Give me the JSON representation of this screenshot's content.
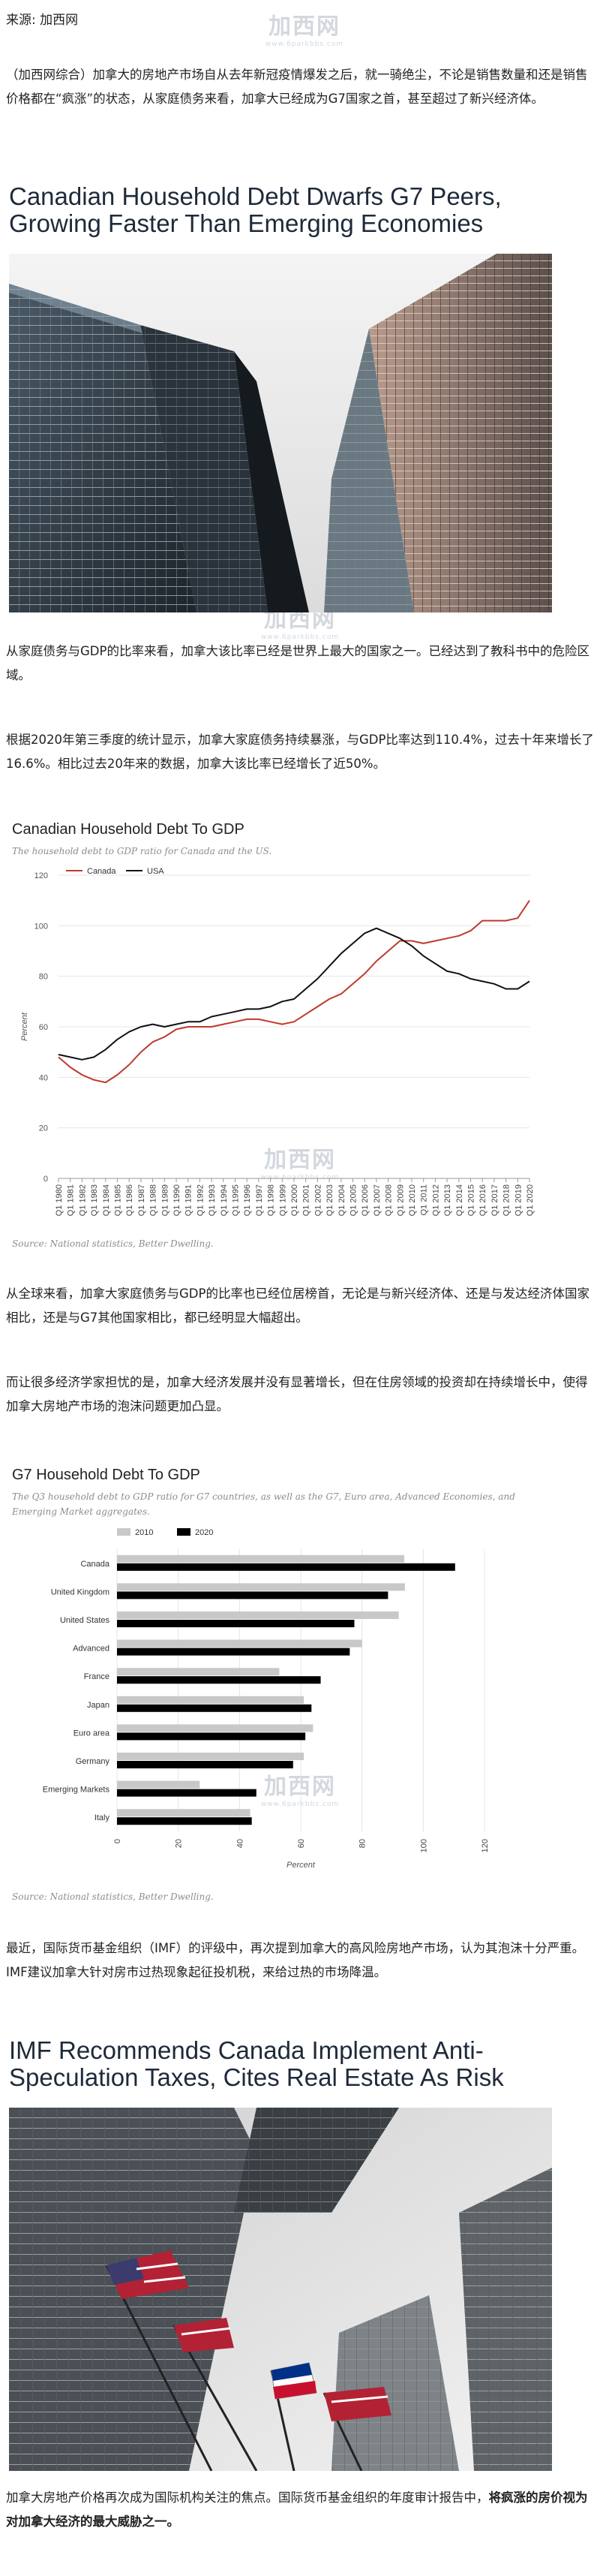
{
  "source": "来源: 加西网",
  "watermark": {
    "main": "加西网",
    "sub": "www.6parkbbs.com"
  },
  "paragraphs": {
    "intro": "（加西网综合）加拿大的房地产市场自从去年新冠疫情爆发之后，就一骑绝尘，不论是销售数量和还是销售价格都在“疯涨”的状态，从家庭债务来看，加拿大已经成为G7国家之首，甚至超过了新兴经济体。",
    "ratio": "从家庭债务与GDP的比率来看，加拿大该比率已经是世界上最大的国家之一。已经达到了教科书中的危险区域。",
    "stats": "根据2020年第三季度的统计显示，加拿大家庭债务持续暴涨，与GDP比率达到110.4%，过去十年来增长了16.6%。相比过去20年来的数据，加拿大该比率已经增长了近50%。",
    "global": "从全球来看，加拿大家庭债务与GDP的比率也已经位居榜首，无论是与新兴经济体、还是与发达经济体国家相比，还是与G7其他国家相比，都已经明显大幅超出。",
    "economists": "而让很多经济学家担忧的是，加拿大经济发展并没有显著增长，但在住房领域的投资却在持续增长中，使得加拿大房地产市场的泡沫问题更加凸显。",
    "imf": "最近，国际货币基金组织（IMF）的评级中，再次提到加拿大的高风险房地产市场，认为其泡沫十分严重。IMF建议加拿大针对房市过热现象起征投机税，来给过热的市场降温。",
    "last_plain": "加拿大房地产价格再次成为国际机构关注的焦点。国际货币基金组织的年度审计报告中，",
    "last_bold": "将疯涨的房价视为对加拿大经济的最大威胁之一。"
  },
  "headline1": {
    "line1": "Canadian Household Debt Dwarfs G7 Peers,",
    "line2": "Growing Faster Than Emerging Economies"
  },
  "headline2": {
    "line1": "IMF Recommends Canada Implement Anti-",
    "line2": "Speculation Taxes, Cites Real Estate As Risk"
  },
  "chart1": {
    "title": "Canadian Household Debt To GDP",
    "subtitle": "The household debt to GDP ratio for Canada and the US.",
    "source": "Source: National statistics, Better Dwelling.",
    "ylabel": "Percent"
  },
  "chart2": {
    "title": "G7 Household Debt To GDP",
    "subtitle_line1": "The Q3 household debt to GDP ratio for G7 countries, as well as the G7, Euro area, Advanced Economies, and",
    "subtitle_line2": "Emerging Market aggregates.",
    "source": "Source: National statistics, Better Dwelling.",
    "xlabel": "Percent"
  },
  "chart_data": [
    {
      "type": "line",
      "title": "Canadian Household Debt To GDP",
      "ylabel": "Percent",
      "ylim": [
        0,
        120
      ],
      "yticks": [
        0,
        20,
        40,
        60,
        80,
        100,
        120
      ],
      "grid": true,
      "legend": "top-left",
      "colors": {
        "Canada": "#c0392b",
        "USA": "#111111"
      },
      "x": [
        "Q1 1980",
        "Q1 1981",
        "Q1 1982",
        "Q1 1983",
        "Q1 1984",
        "Q1 1985",
        "Q1 1986",
        "Q1 1987",
        "Q1 1988",
        "Q1 1989",
        "Q1 1990",
        "Q1 1991",
        "Q1 1992",
        "Q1 1993",
        "Q1 1994",
        "Q1 1995",
        "Q1 1996",
        "Q1 1997",
        "Q1 1998",
        "Q1 1999",
        "Q1 2000",
        "Q1 2001",
        "Q1 2002",
        "Q1 2003",
        "Q1 2004",
        "Q1 2005",
        "Q1 2006",
        "Q1 2007",
        "Q1 2008",
        "Q1 2009",
        "Q1 2010",
        "Q1 2011",
        "Q1 2012",
        "Q1 2013",
        "Q1 2014",
        "Q1 2015",
        "Q1 2016",
        "Q1 2017",
        "Q1 2018",
        "Q1 2019",
        "Q1 2020"
      ],
      "series": [
        {
          "name": "Canada",
          "values": [
            48,
            44,
            41,
            39,
            38,
            41,
            45,
            50,
            54,
            56,
            59,
            60,
            60,
            60,
            61,
            62,
            63,
            63,
            62,
            61,
            62,
            65,
            68,
            71,
            73,
            77,
            81,
            86,
            90,
            94,
            94,
            93,
            94,
            95,
            96,
            98,
            102,
            102,
            102,
            103,
            110
          ]
        },
        {
          "name": "USA",
          "values": [
            49,
            48,
            47,
            48,
            51,
            55,
            58,
            60,
            61,
            60,
            61,
            62,
            62,
            64,
            65,
            66,
            67,
            67,
            68,
            70,
            71,
            75,
            79,
            84,
            89,
            93,
            97,
            99,
            97,
            95,
            92,
            88,
            85,
            82,
            81,
            79,
            78,
            77,
            75,
            75,
            78
          ]
        }
      ]
    },
    {
      "type": "bar",
      "orientation": "horizontal",
      "title": "G7 Household Debt To GDP",
      "xlabel": "Percent",
      "xlim": [
        0,
        120
      ],
      "xticks": [
        0,
        20,
        40,
        60,
        80,
        100,
        120
      ],
      "grid": true,
      "legend": "top-left",
      "categories": [
        "Canada",
        "United Kingdom",
        "United States",
        "Advanced",
        "France",
        "Japan",
        "Euro area",
        "Germany",
        "Emerging Markets",
        "Italy"
      ],
      "series": [
        {
          "name": "2010",
          "color": "#c8c8c8",
          "values": [
            93.8,
            94,
            92,
            80,
            53,
            61,
            64,
            61,
            27,
            43.5
          ]
        },
        {
          "name": "2020",
          "color": "#000000",
          "values": [
            110.4,
            88.5,
            77.5,
            76,
            66.5,
            63.5,
            61.5,
            57.5,
            45.5,
            44
          ]
        }
      ]
    }
  ]
}
